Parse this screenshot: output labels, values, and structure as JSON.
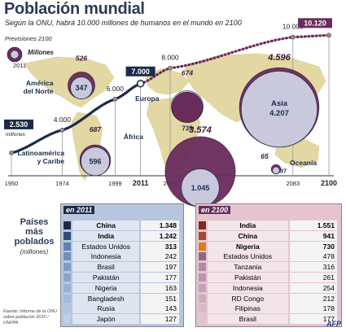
{
  "header": {
    "title": "Población mundial",
    "subtitle": "Según la ONU, habrá 10.000 millones de humanos en el mundo en 2100"
  },
  "legend": {
    "heading": "Previsiones 2100",
    "unit": "Millones",
    "year": "2011"
  },
  "chart_data": [
    {
      "type": "line",
      "title": "Población mundial",
      "x": [
        1950,
        1974,
        1999,
        2011,
        2025,
        2083,
        2100
      ],
      "y": [
        2530,
        4000,
        6000,
        7000,
        8000,
        10000,
        10120
      ],
      "y_labels": [
        "2.530",
        "4.000",
        "6.000",
        "7.000",
        "8.000",
        "10.000",
        "10.120"
      ],
      "x_labels": [
        "1950",
        "1974",
        "1999",
        "2011",
        "2025",
        "2083",
        "2100"
      ],
      "first_value_unit": "millones",
      "series": [
        {
          "segment": "observed",
          "x_range": [
            1950,
            2011
          ]
        },
        {
          "segment": "forecast",
          "x_range": [
            2011,
            2100
          ]
        }
      ]
    },
    {
      "type": "bubble",
      "regions": [
        {
          "name": "América del Norte",
          "value_2011": "347",
          "value_2100": "526"
        },
        {
          "name": "Latinoamérica y Caribe",
          "value_2011": "596",
          "value_2100": "687"
        },
        {
          "name": "Europa",
          "value_2011": "739",
          "value_2100": "674"
        },
        {
          "name": "África",
          "value_2011": "1.045",
          "value_2100": "3.574"
        },
        {
          "name": "Asia",
          "value_2011": "4.207",
          "value_2100": "4.596"
        },
        {
          "name": "Oceanía",
          "value_2011": "37",
          "value_2100": "65"
        }
      ]
    },
    {
      "type": "table",
      "title": "en 2011",
      "rows": [
        {
          "country": "China",
          "value": "1.348"
        },
        {
          "country": "India",
          "value": "1.242"
        },
        {
          "country": "Estados Unidos",
          "value": "313"
        },
        {
          "country": "Indonesia",
          "value": "242"
        },
        {
          "country": "Brasil",
          "value": "197"
        },
        {
          "country": "Pakistán",
          "value": "177"
        },
        {
          "country": "Nigeria",
          "value": "163"
        },
        {
          "country": "Bangladesh",
          "value": "151"
        },
        {
          "country": "Rusia",
          "value": "143"
        },
        {
          "country": "Japón",
          "value": "127"
        }
      ]
    },
    {
      "type": "table",
      "title": "en 2100",
      "rows": [
        {
          "country": "India",
          "value": "1.551"
        },
        {
          "country": "China",
          "value": "941"
        },
        {
          "country": "Nigeria",
          "value": "730"
        },
        {
          "country": "Estados Unidos",
          "value": "478"
        },
        {
          "country": "Tanzania",
          "value": "316"
        },
        {
          "country": "Pakistán",
          "value": "261"
        },
        {
          "country": "Indonesia",
          "value": "254"
        },
        {
          "country": "RD Congo",
          "value": "212"
        },
        {
          "country": "Filipinas",
          "value": "178"
        },
        {
          "country": "Brasil",
          "value": "177"
        }
      ]
    }
  ],
  "side_label": {
    "line1": "Países",
    "line2": "más",
    "line3": "poblados",
    "unit": "(millones)"
  },
  "source": "Fuente: Informe de la ONU sobre población 2010 / UNFPA",
  "credit": "AFP",
  "colors": {
    "navy": "#1c2b4a",
    "purple": "#6a2c5c",
    "bubble_fill": "#c9c8dc",
    "table2011_bg": "#b7c6de",
    "table2100_bg": "#e5c4cf",
    "map": "#e3d7a3"
  }
}
